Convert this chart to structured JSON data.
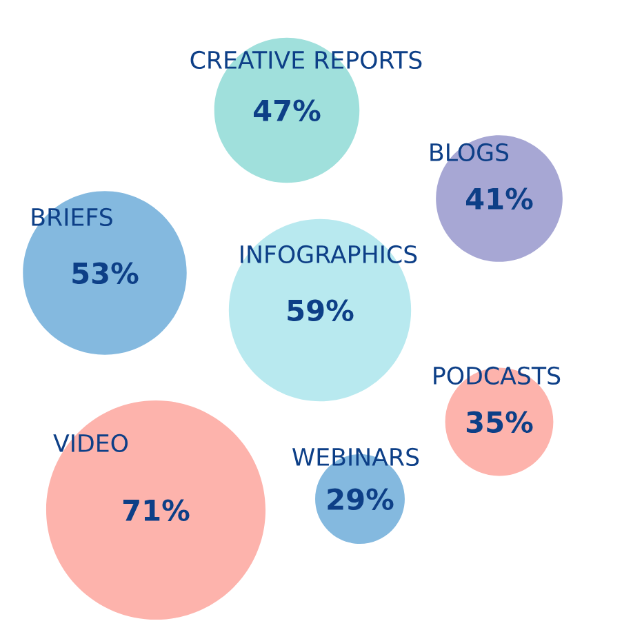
{
  "chart_data": {
    "type": "other",
    "categories": [
      "CREATIVE REPORTS",
      "BLOGS",
      "BRIEFS",
      "INFOGRAPHICS",
      "PODCASTS",
      "VIDEO",
      "WEBINARS"
    ],
    "values": [
      47,
      41,
      53,
      59,
      35,
      71,
      29
    ],
    "value_labels": [
      "47%",
      "41%",
      "53%",
      "59%",
      "35%",
      "71%",
      "29%"
    ],
    "colors": [
      "#a0e0dc",
      "#a7a7d4",
      "#84b9df",
      "#b8e9ef",
      "#fdb3ac",
      "#fdb3ac",
      "#84b9df"
    ]
  }
}
